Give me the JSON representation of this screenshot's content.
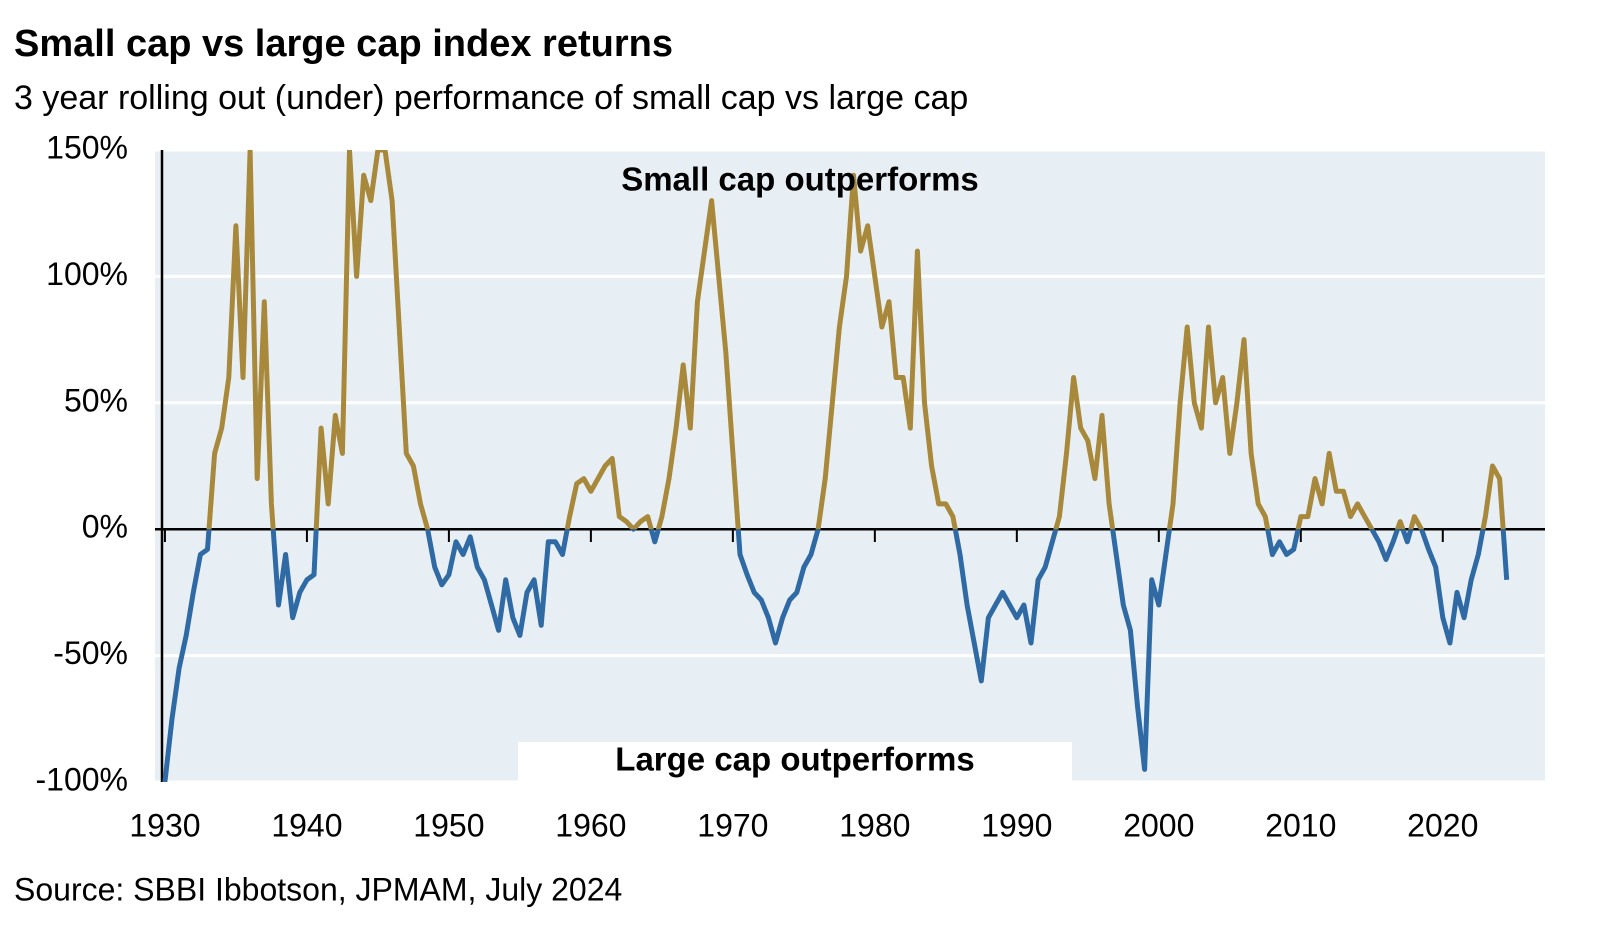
{
  "chart_data": {
    "type": "line",
    "title": "Small cap vs large cap index returns",
    "subtitle": "3 year rolling out (under) performance of small cap vs large cap",
    "source": "Source: SBBI Ibbotson, JPMAM, July 2024",
    "annotations": [
      "Small cap outperforms",
      "Large cap outperforms"
    ],
    "x": [
      1930,
      1930.5,
      1931,
      1931.5,
      1932,
      1932.5,
      1933,
      1933.5,
      1934,
      1934.5,
      1935,
      1935.5,
      1936,
      1936.5,
      1937,
      1937.5,
      1938,
      1938.5,
      1939,
      1939.5,
      1940,
      1940.5,
      1941,
      1941.5,
      1942,
      1942.5,
      1943,
      1943.5,
      1944,
      1944.5,
      1945,
      1945.5,
      1946,
      1946.5,
      1947,
      1947.5,
      1948,
      1948.5,
      1949,
      1949.5,
      1950,
      1950.5,
      1951,
      1951.5,
      1952,
      1952.5,
      1953,
      1953.5,
      1954,
      1954.5,
      1955,
      1955.5,
      1956,
      1956.5,
      1957,
      1957.5,
      1958,
      1958.5,
      1959,
      1959.5,
      1960,
      1960.5,
      1961,
      1961.5,
      1962,
      1962.5,
      1963,
      1963.5,
      1964,
      1964.5,
      1965,
      1965.5,
      1966,
      1966.5,
      1967,
      1967.5,
      1968,
      1968.5,
      1969,
      1969.5,
      1970,
      1970.5,
      1971,
      1971.5,
      1972,
      1972.5,
      1973,
      1973.5,
      1974,
      1974.5,
      1975,
      1975.5,
      1976,
      1976.5,
      1977,
      1977.5,
      1978,
      1978.5,
      1979,
      1979.5,
      1980,
      1980.5,
      1981,
      1981.5,
      1982,
      1982.5,
      1983,
      1983.5,
      1984,
      1984.5,
      1985,
      1985.5,
      1986,
      1986.5,
      1987,
      1987.5,
      1988,
      1988.5,
      1989,
      1989.5,
      1990,
      1990.5,
      1991,
      1991.5,
      1992,
      1992.5,
      1993,
      1993.5,
      1994,
      1994.5,
      1995,
      1995.5,
      1996,
      1996.5,
      1997,
      1997.5,
      1998,
      1998.5,
      1999,
      1999.5,
      2000,
      2000.5,
      2001,
      2001.5,
      2002,
      2002.5,
      2003,
      2003.5,
      2004,
      2004.5,
      2005,
      2005.5,
      2006,
      2006.5,
      2007,
      2007.5,
      2008,
      2008.5,
      2009,
      2009.5,
      2010,
      2010.5,
      2011,
      2011.5,
      2012,
      2012.5,
      2013,
      2013.5,
      2014,
      2014.5,
      2015,
      2015.5,
      2016,
      2016.5,
      2017,
      2017.5,
      2018,
      2018.5,
      2019,
      2019.5,
      2020,
      2020.5,
      2021,
      2021.5,
      2022,
      2022.5,
      2023,
      2023.5,
      2024,
      2024.5
    ],
    "series": [
      {
        "color_above": "#a8893b",
        "color_below": "#2f6aa5",
        "values": [
          -100,
          -75,
          -55,
          -42,
          -25,
          -10,
          -8,
          30,
          40,
          60,
          120,
          60,
          150,
          20,
          90,
          10,
          -30,
          -10,
          -35,
          -25,
          -20,
          -18,
          40,
          10,
          45,
          30,
          150,
          100,
          140,
          130,
          150,
          150,
          130,
          80,
          30,
          25,
          10,
          0,
          -15,
          -22,
          -18,
          -5,
          -10,
          -3,
          -15,
          -20,
          -30,
          -40,
          -20,
          -35,
          -42,
          -25,
          -20,
          -38,
          -5,
          -5,
          -10,
          5,
          18,
          20,
          15,
          20,
          25,
          28,
          5,
          3,
          0,
          3,
          5,
          -5,
          5,
          20,
          40,
          65,
          40,
          90,
          110,
          130,
          100,
          70,
          30,
          -10,
          -18,
          -25,
          -28,
          -35,
          -45,
          -35,
          -28,
          -25,
          -15,
          -10,
          0,
          20,
          50,
          80,
          100,
          140,
          110,
          120,
          100,
          80,
          90,
          60,
          60,
          40,
          110,
          50,
          25,
          10,
          10,
          5,
          -10,
          -30,
          -45,
          -60,
          -35,
          -30,
          -25,
          -30,
          -35,
          -30,
          -45,
          -20,
          -15,
          -5,
          5,
          30,
          60,
          40,
          35,
          20,
          45,
          10,
          -10,
          -30,
          -40,
          -70,
          -95,
          -20,
          -30,
          -10,
          10,
          50,
          80,
          50,
          40,
          80,
          50,
          60,
          30,
          50,
          75,
          30,
          10,
          5,
          -10,
          -5,
          -10,
          -8,
          5,
          5,
          20,
          10,
          30,
          15,
          15,
          5,
          10,
          5,
          0,
          -5,
          -12,
          -5,
          3,
          -5,
          5,
          0,
          -8,
          -15,
          -35,
          -45,
          -25,
          -35,
          -20,
          -10,
          5,
          25,
          20,
          -20
        ]
      }
    ],
    "xlim": [
      1929.3,
      2027.2
    ],
    "xticks": [
      1930,
      1940,
      1950,
      1960,
      1970,
      1980,
      1990,
      2000,
      2010,
      2020
    ],
    "ylim": [
      -100,
      150
    ],
    "yticks": [
      {
        "value": -100,
        "label": "-100%"
      },
      {
        "value": -50,
        "label": "-50%"
      },
      {
        "value": 0,
        "label": "0%"
      },
      {
        "value": 50,
        "label": "50%"
      },
      {
        "value": 100,
        "label": "100%"
      },
      {
        "value": 150,
        "label": "150%"
      }
    ],
    "grid": true,
    "background": "#e8eff4"
  }
}
